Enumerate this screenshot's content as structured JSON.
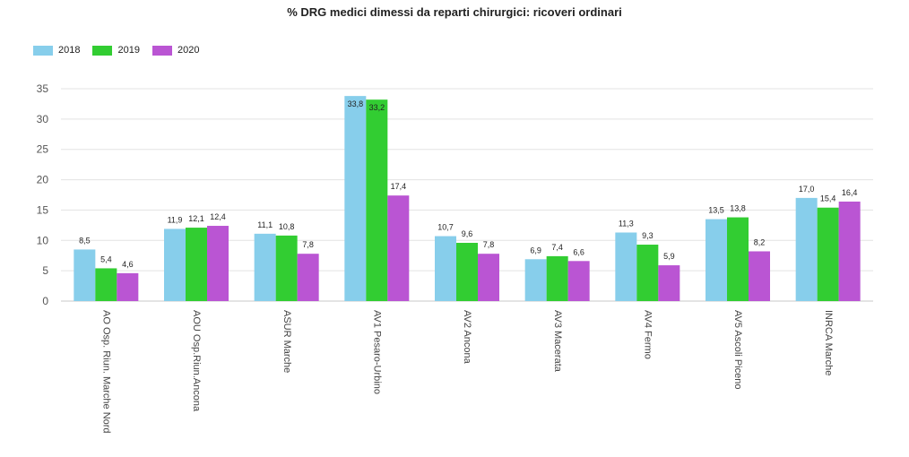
{
  "chart_data": {
    "type": "bar",
    "title": "% DRG medici dimessi da reparti chirurgici: ricoveri ordinari",
    "categories": [
      "AO Osp. Riun. Marche Nord",
      "AOU Osp.Riun.Ancona",
      "ASUR Marche",
      "AV1 Pesaro-Urbino",
      "AV2 Ancona",
      "AV3 Macerata",
      "AV4 Fermo",
      "AV5 Ascoli Piceno",
      "INRCA Marche"
    ],
    "series": [
      {
        "name": "2018",
        "color": "#87ceeb",
        "values": [
          8.5,
          11.9,
          11.1,
          33.8,
          10.7,
          6.9,
          11.3,
          13.5,
          17.0
        ],
        "labels": [
          "8,5",
          "11,9",
          "11,1",
          "33,8",
          "10,7",
          "6,9",
          "11,3",
          "13,5",
          "17,0"
        ]
      },
      {
        "name": "2019",
        "color": "#32cd32",
        "values": [
          5.4,
          12.1,
          10.8,
          33.2,
          9.6,
          7.4,
          9.3,
          13.8,
          15.4
        ],
        "labels": [
          "5,4",
          "12,1",
          "10,8",
          "33,2",
          "9,6",
          "7,4",
          "9,3",
          "13,8",
          "15,4"
        ]
      },
      {
        "name": "2020",
        "color": "#ba55d3",
        "values": [
          4.6,
          12.4,
          7.8,
          17.4,
          7.8,
          6.6,
          5.9,
          8.2,
          16.4
        ],
        "labels": [
          "4,6",
          "12,4",
          "7,8",
          "17,4",
          "7,8",
          "6,6",
          "5,9",
          "8,2",
          "16,4"
        ]
      }
    ],
    "ylim": [
      0,
      35
    ],
    "yticks": [
      0,
      5,
      10,
      15,
      20,
      25,
      30,
      35
    ],
    "grid": true,
    "legend_position": "top-left"
  }
}
